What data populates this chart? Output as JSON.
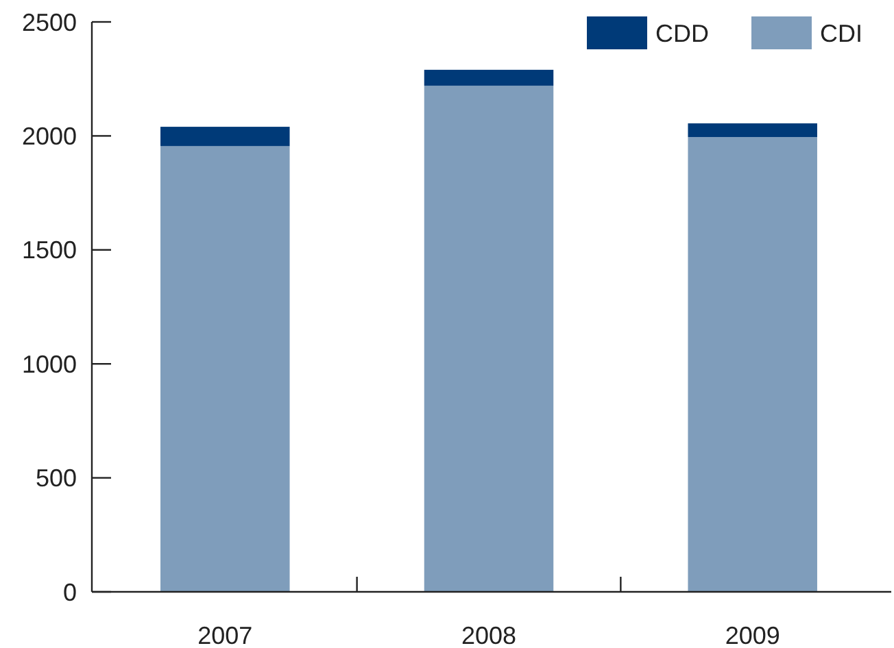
{
  "chart_data": {
    "type": "bar",
    "stacked": true,
    "categories": [
      "2007",
      "2008",
      "2009"
    ],
    "series": [
      {
        "name": "CDI",
        "color": "#7f9dbb",
        "values": [
          1955,
          2220,
          1995
        ]
      },
      {
        "name": "CDD",
        "color": "#003a78",
        "values": [
          85,
          70,
          60
        ]
      }
    ],
    "ylim": [
      0,
      2500
    ],
    "yticks": [
      0,
      500,
      1000,
      1500,
      2000,
      2500
    ],
    "grid": false,
    "legend": "top right"
  }
}
